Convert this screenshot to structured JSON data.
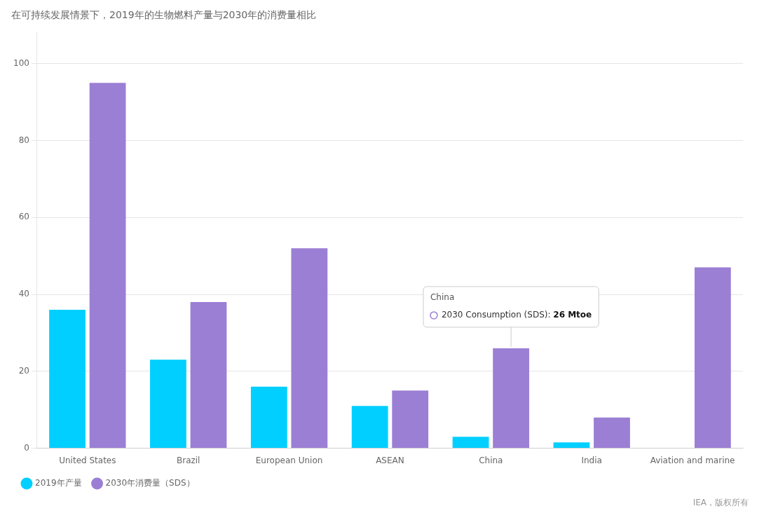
{
  "chart_data": {
    "type": "bar",
    "title": "在可持续发展情景下，2019年的生物燃料产量与2030年的消费量相比",
    "categories": [
      "United States",
      "Brazil",
      "European Union",
      "ASEAN",
      "China",
      "India",
      "Aviation and marine"
    ],
    "series": [
      {
        "name": "2019年产量",
        "color": "#00CFFF",
        "values": [
          36,
          23,
          16,
          11,
          3,
          1.5,
          0
        ]
      },
      {
        "name": "2030年消费量（SDS）",
        "color": "#9B7FD4",
        "values": [
          95,
          38,
          52,
          15,
          26,
          8,
          47
        ]
      }
    ],
    "ylim": [
      0,
      108
    ],
    "yticks": [
      0,
      20,
      40,
      60,
      80,
      100
    ],
    "grid": true,
    "legend": "lower left",
    "annotations": [
      {
        "text": "IEA，版权所有"
      },
      {
        "category": "China",
        "series": "2030年消费量（SDS）",
        "title": "China",
        "label": "2030 Consumption (SDS): ",
        "value_label": "26 Mtoe"
      }
    ]
  }
}
